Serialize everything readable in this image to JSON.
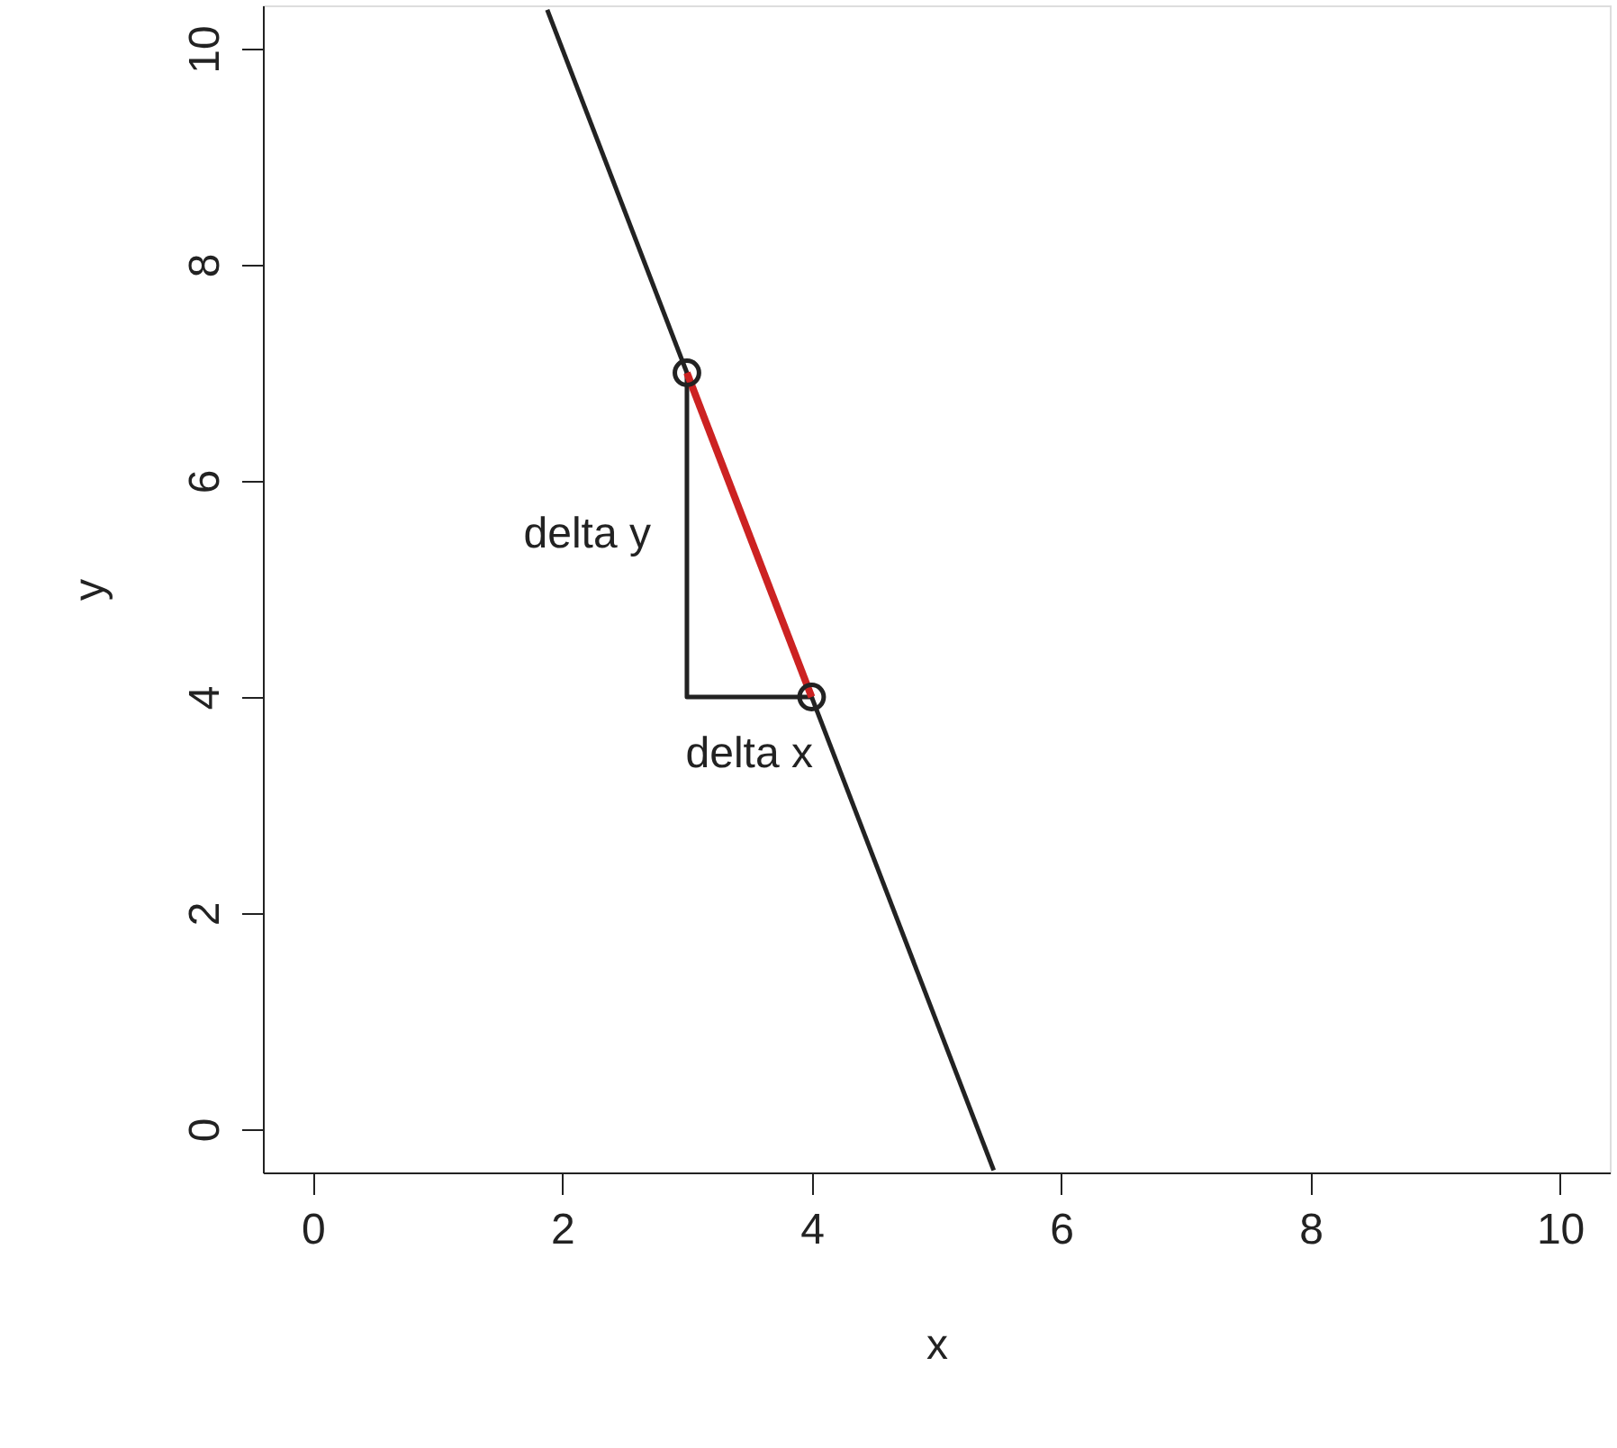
{
  "chart_data": {
    "type": "line",
    "xlabel": "x",
    "ylabel": "y",
    "xlim": [
      -0.4,
      10.4
    ],
    "ylim": [
      -0.4,
      10.4
    ],
    "xticks": [
      0,
      2,
      4,
      6,
      8,
      10
    ],
    "yticks": [
      0,
      2,
      4,
      6,
      8,
      10
    ],
    "grid": false,
    "line_style": "solid",
    "series": [
      {
        "color": "#222222",
        "x": [
          1.88,
          5.46
        ],
        "values": [
          10.36,
          -0.38
        ]
      },
      {
        "color": "#222222",
        "x": [
          3,
          3,
          4
        ],
        "values": [
          7,
          4,
          4
        ]
      },
      {
        "color": "#cc2222",
        "x": [
          3,
          4
        ],
        "values": [
          7,
          4
        ]
      },
      {
        "type": "scatter",
        "color": "#222222",
        "marker": "circle",
        "x": [
          3,
          4
        ],
        "values": [
          7,
          4
        ]
      }
    ],
    "annotations": [
      "delta y",
      "delta x"
    ]
  }
}
